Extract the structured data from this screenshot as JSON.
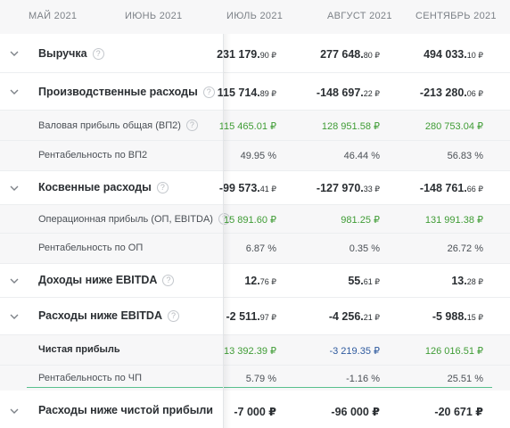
{
  "months": [
    "МАЙ 2021",
    "ИЮНЬ 2021",
    "ИЮЛЬ 2021",
    "АВГУСТ 2021",
    "СЕНТЯБРЬ 2021"
  ],
  "icons": {
    "expand": "chevron-down-icon",
    "info": "info-icon"
  },
  "colors": {
    "positive": "#3f9c35",
    "negative": "#2e5a9e",
    "accent_line": "#58c08d"
  },
  "rows": {
    "revenue": {
      "label": "Выручка",
      "v1": "231 179.",
      "v1c": "90 ₽",
      "v2": "277 648.",
      "v2c": "80 ₽",
      "v3": "494 033.",
      "v3c": "10 ₽"
    },
    "prod_costs": {
      "label": "Производственные расходы",
      "v1": "115 714.",
      "v1c": "89 ₽",
      "v2": "-148 697.",
      "v2c": "22 ₽",
      "v3": "-213 280.",
      "v3c": "06 ₽"
    },
    "gross_profit": {
      "label": "Валовая прибыль общая (ВП2)",
      "v1": "115 465.01 ₽",
      "v2": "128 951.58 ₽",
      "v3": "280 753.04 ₽"
    },
    "gross_margin": {
      "label": "Рентабельность по ВП2",
      "v1": "49.95 %",
      "v2": "46.44 %",
      "v3": "56.83 %"
    },
    "indirect_costs": {
      "label": "Косвенные расходы",
      "v1": "-99 573.",
      "v1c": "41 ₽",
      "v2": "-127 970.",
      "v2c": "33 ₽",
      "v3": "-148 761.",
      "v3c": "66 ₽"
    },
    "op_profit": {
      "label": "Операционная прибыль (ОП, EBITDA)",
      "v1": "15 891.60 ₽",
      "v2": "981.25 ₽",
      "v3": "131 991.38 ₽"
    },
    "op_margin": {
      "label": "Рентабельность по ОП",
      "v1": "6.87 %",
      "v2": "0.35 %",
      "v3": "26.72 %"
    },
    "income_below": {
      "label": "Доходы ниже EBITDA",
      "v1": "12.",
      "v1c": "76 ₽",
      "v2": "55.",
      "v2c": "61 ₽",
      "v3": "13.",
      "v3c": "28 ₽"
    },
    "expense_below": {
      "label": "Расходы ниже EBITDA",
      "v1": "-2 511.",
      "v1c": "97 ₽",
      "v2": "-4 256.",
      "v2c": "21 ₽",
      "v3": "-5 988.",
      "v3c": "15 ₽"
    },
    "net_profit": {
      "label": "Чистая прибыль",
      "v1": "13 392.39 ₽",
      "v2": "-3 219.35 ₽",
      "v3": "126 016.51 ₽"
    },
    "net_margin": {
      "label": "Рентабельность по ЧП",
      "v1": "5.79 %",
      "v2": "-1.16 %",
      "v3": "25.51 %"
    },
    "expense_below_net": {
      "label": "Расходы ниже чистой прибыли",
      "v1": "-7 000 ₽",
      "v2": "-96 000 ₽",
      "v3": "-20 671 ₽"
    }
  }
}
